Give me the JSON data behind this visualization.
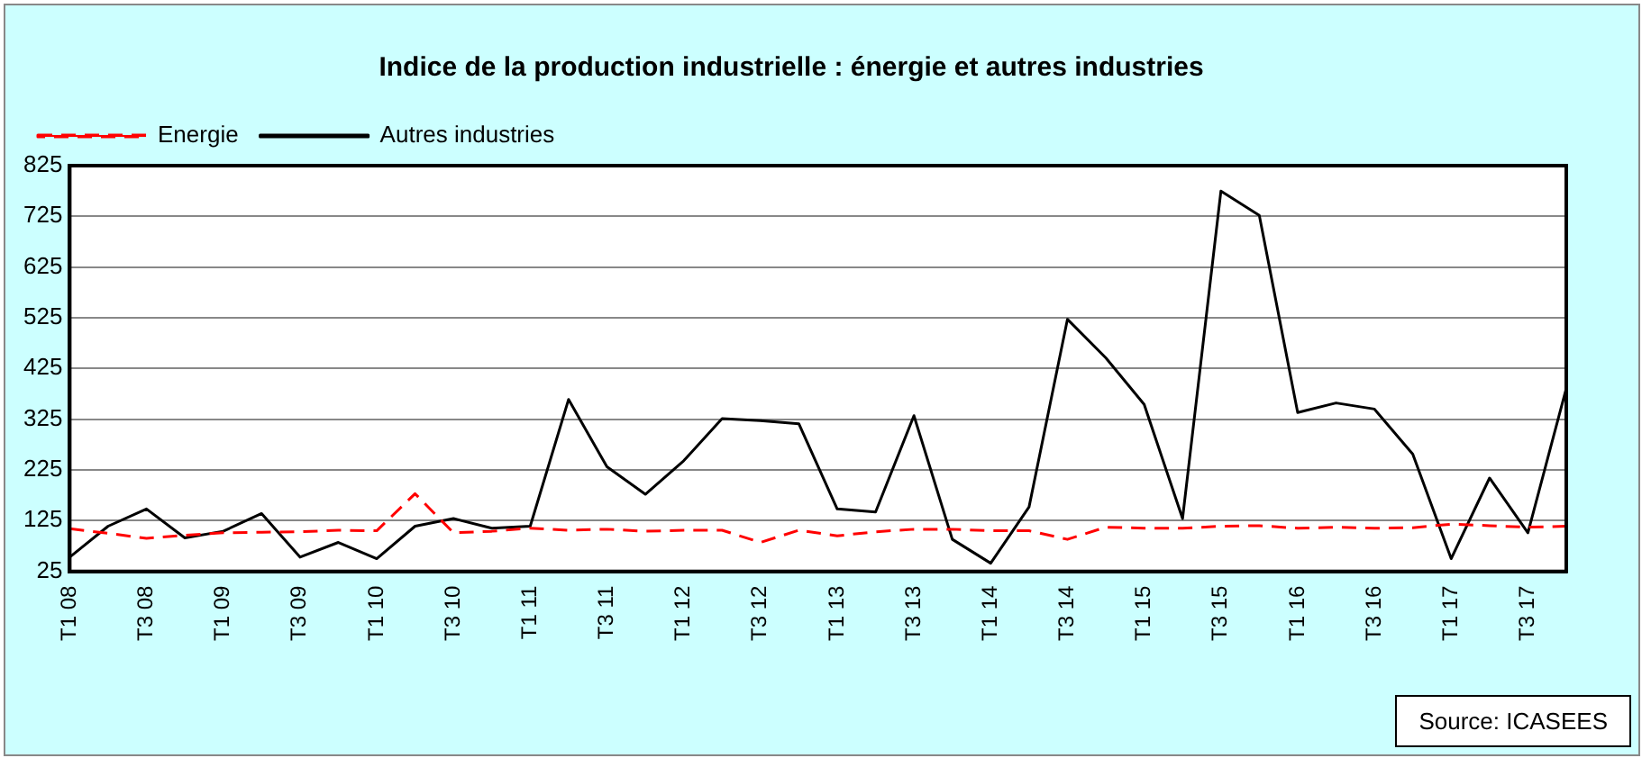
{
  "chart_data": {
    "type": "line",
    "title": "Indice de la production industrielle : énergie et autres industries",
    "categories": [
      "T1 08",
      null,
      "T3 08",
      null,
      "T1 09",
      null,
      "T3 09",
      null,
      "T1 10",
      null,
      "T3 10",
      null,
      "T1 11",
      null,
      "T3 11",
      null,
      "T1 12",
      null,
      "T3 12",
      null,
      "T1 13",
      null,
      "T3 13",
      null,
      "T1 14",
      null,
      "T3 14",
      null,
      "T1 15",
      null,
      "T3 15",
      null,
      "T1 16",
      null,
      "T3 16",
      null,
      "T1 17",
      null,
      "T3 17",
      null
    ],
    "series": [
      {
        "name": "Energie",
        "color": "#ff0000",
        "line_style": "dashed",
        "values": [
          109,
          100,
          90,
          96,
          101,
          102,
          103,
          106,
          105,
          178,
          101,
          104,
          110,
          106,
          108,
          104,
          106,
          106,
          82,
          106,
          95,
          103,
          108,
          108,
          105,
          105,
          88,
          112,
          110,
          110,
          114,
          115,
          110,
          112,
          110,
          111,
          118,
          115,
          112,
          114
        ]
      },
      {
        "name": "Autres industries",
        "color": "#000000",
        "line_style": "solid",
        "values": [
          53,
          114,
          148,
          91,
          104,
          139,
          53,
          82,
          50,
          114,
          129,
          110,
          114,
          364,
          231,
          177,
          243,
          326,
          322,
          316,
          148,
          142,
          332,
          88,
          41,
          152,
          522,
          446,
          354,
          129,
          775,
          727,
          338,
          357,
          345,
          256,
          50,
          209,
          101,
          386
        ]
      }
    ],
    "ylim": [
      25,
      825
    ],
    "yticks": [
      25,
      125,
      225,
      325,
      425,
      525,
      625,
      725,
      825
    ],
    "grid": "y",
    "legend": "top left",
    "marker": "none",
    "annotations": [
      "Source: ICASEES"
    ]
  }
}
